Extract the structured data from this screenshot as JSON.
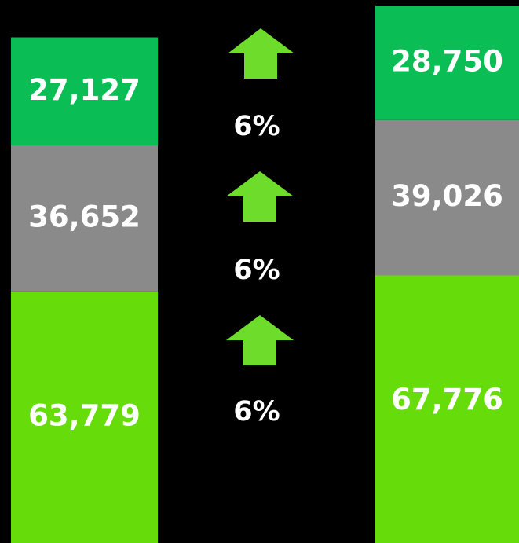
{
  "chart_data": {
    "type": "bar",
    "stacked": true,
    "categories": [
      null,
      null
    ],
    "series": [
      {
        "color": "#66dd0a",
        "values": [
          63779,
          67776
        ],
        "value_labels": [
          "63,779",
          "67,776"
        ]
      },
      {
        "color": "#8a8a8a",
        "values": [
          36652,
          39026
        ],
        "value_labels": [
          "36,652",
          "39,026"
        ]
      },
      {
        "color": "#0bbd55",
        "values": [
          27127,
          28750
        ],
        "value_labels": [
          "27,127",
          "28,750"
        ]
      }
    ],
    "annotations": [
      "6%",
      "6%",
      "6%"
    ]
  }
}
